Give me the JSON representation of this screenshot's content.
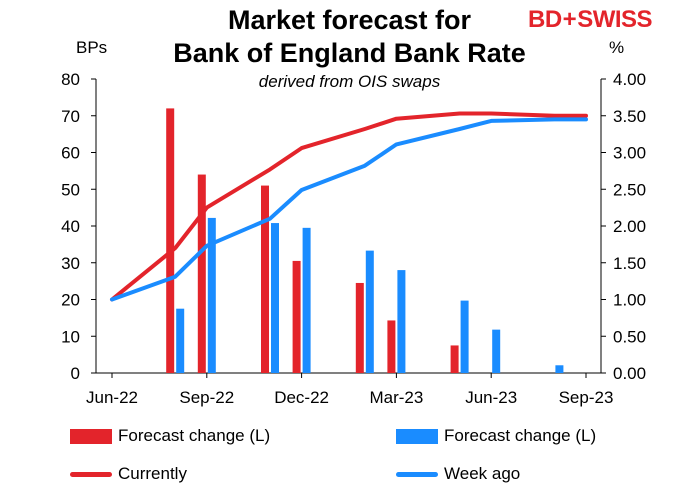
{
  "header": {
    "title_line1": "Market forecast for",
    "title_line2": "Bank of England Bank Rate",
    "subtitle": "derived from OIS swaps",
    "left_unit": "BPs",
    "right_unit": "%",
    "logo_text_1": "BD",
    "logo_plus": "+",
    "logo_text_2": "SWISS"
  },
  "colors": {
    "red": "#e3242b",
    "blue": "#1a8cff"
  },
  "chart_data": {
    "type": "bar+line",
    "x_tick_labels": [
      "Jun-22",
      "Sep-22",
      "Dec-22",
      "Mar-23",
      "Jun-23",
      "Sep-23"
    ],
    "x_ticks_months": [
      "2022-06",
      "2022-09",
      "2022-12",
      "2023-03",
      "2023-06",
      "2023-09"
    ],
    "y_left": {
      "label": "BPs",
      "lim": [
        0,
        80
      ],
      "ticks": [
        "0",
        "10",
        "20",
        "30",
        "40",
        "50",
        "60",
        "70",
        "80"
      ]
    },
    "y_right": {
      "label": "%",
      "lim": [
        0,
        4
      ],
      "ticks": [
        "0.00",
        "0.50",
        "1.00",
        "1.50",
        "2.00",
        "2.50",
        "3.00",
        "3.50",
        "4.00"
      ]
    },
    "bar_series": [
      {
        "name": "Forecast change (L)",
        "color": "#e3242b",
        "points": [
          {
            "x": "2022-08",
            "y": 72
          },
          {
            "x": "2022-09",
            "y": 54
          },
          {
            "x": "2022-11",
            "y": 51
          },
          {
            "x": "2022-12",
            "y": 30.5
          },
          {
            "x": "2023-02",
            "y": 24.5
          },
          {
            "x": "2023-03",
            "y": 14.3
          },
          {
            "x": "2023-05",
            "y": 7.5
          }
        ]
      },
      {
        "name": "Forecast change (L)",
        "color": "#1a8cff",
        "points": [
          {
            "x": "2022-08",
            "y": 17.5
          },
          {
            "x": "2022-09",
            "y": 42.2
          },
          {
            "x": "2022-11",
            "y": 40.8
          },
          {
            "x": "2022-12",
            "y": 39.5
          },
          {
            "x": "2023-02",
            "y": 33.3
          },
          {
            "x": "2023-03",
            "y": 28
          },
          {
            "x": "2023-05",
            "y": 19.7
          },
          {
            "x": "2023-06",
            "y": 11.8
          },
          {
            "x": "2023-08",
            "y": 2.1
          }
        ]
      }
    ],
    "line_series": [
      {
        "name": "Currently",
        "color": "#e3242b",
        "axis": "right",
        "points": [
          {
            "x": "2022-06",
            "y": 1.0
          },
          {
            "x": "2022-08",
            "y": 1.7
          },
          {
            "x": "2022-09",
            "y": 2.25
          },
          {
            "x": "2022-11",
            "y": 2.77
          },
          {
            "x": "2022-12",
            "y": 3.06
          },
          {
            "x": "2023-02",
            "y": 3.32
          },
          {
            "x": "2023-03",
            "y": 3.46
          },
          {
            "x": "2023-05",
            "y": 3.53
          },
          {
            "x": "2023-06",
            "y": 3.53
          },
          {
            "x": "2023-08",
            "y": 3.5
          },
          {
            "x": "2023-09",
            "y": 3.5
          }
        ]
      },
      {
        "name": "Week ago",
        "color": "#1a8cff",
        "axis": "right",
        "points": [
          {
            "x": "2022-06",
            "y": 1.0
          },
          {
            "x": "2022-08",
            "y": 1.31
          },
          {
            "x": "2022-09",
            "y": 1.73
          },
          {
            "x": "2022-11",
            "y": 2.1
          },
          {
            "x": "2022-12",
            "y": 2.49
          },
          {
            "x": "2023-02",
            "y": 2.82
          },
          {
            "x": "2023-03",
            "y": 3.11
          },
          {
            "x": "2023-05",
            "y": 3.32
          },
          {
            "x": "2023-06",
            "y": 3.43
          },
          {
            "x": "2023-08",
            "y": 3.45
          },
          {
            "x": "2023-09",
            "y": 3.45
          }
        ]
      }
    ],
    "legend": [
      {
        "label": "Forecast change (L)",
        "kind": "bar",
        "color": "#e3242b"
      },
      {
        "label": "Forecast change (L)",
        "kind": "bar",
        "color": "#1a8cff"
      },
      {
        "label": "Currently",
        "kind": "line",
        "color": "#e3242b"
      },
      {
        "label": "Week ago",
        "kind": "line",
        "color": "#1a8cff"
      }
    ],
    "legend_placement": "bottom",
    "grid": false
  }
}
